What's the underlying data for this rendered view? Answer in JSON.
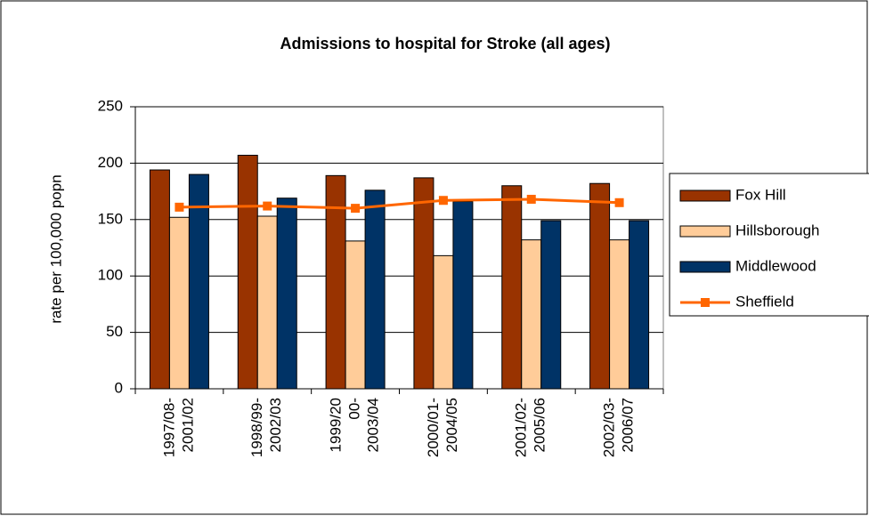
{
  "chart_data": {
    "type": "bar_line",
    "title": "Admissions to hospital for Stroke (all ages)",
    "y_label": "rate per 100,000 popn",
    "categories": [
      [
        "1997/08-",
        "2001/02"
      ],
      [
        "1998/99-",
        "2002/03"
      ],
      [
        "1999/20",
        "00-",
        "2003/04"
      ],
      [
        "2000/01-",
        "2004/05"
      ],
      [
        "2001/02-",
        "2005/06"
      ],
      [
        "2002/03-",
        "2006/07"
      ]
    ],
    "series": [
      {
        "name": "Fox Hill",
        "color": "#993300",
        "kind": "bar",
        "values": [
          194,
          207,
          189,
          187,
          180,
          182
        ]
      },
      {
        "name": "Hillsborough",
        "color": "#FFCC99",
        "kind": "bar",
        "values": [
          152,
          153,
          131,
          118,
          132,
          132
        ]
      },
      {
        "name": "Middlewood",
        "color": "#003366",
        "kind": "bar",
        "values": [
          190,
          169,
          176,
          166,
          149,
          149
        ]
      },
      {
        "name": "Sheffield",
        "color": "#FF6600",
        "kind": "line",
        "values": [
          161,
          162,
          160,
          167,
          168,
          165
        ]
      }
    ],
    "ylim": [
      0,
      250
    ],
    "yticks": [
      0,
      50,
      100,
      150,
      200,
      250
    ],
    "grid": true,
    "legend": "right"
  }
}
